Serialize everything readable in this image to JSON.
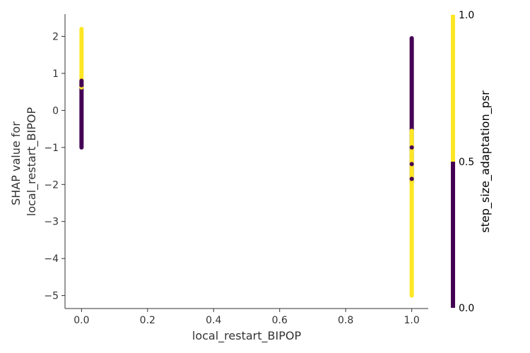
{
  "chart_data": {
    "type": "scatter",
    "title": "",
    "xlabel": "local_restart_BIPOP",
    "ylabel_lines": [
      "SHAP value for",
      "local_restart_BIPOP"
    ],
    "xlim": [
      -0.05,
      1.05
    ],
    "ylim": [
      -5.35,
      2.6
    ],
    "x_ticks": [
      0.0,
      0.2,
      0.4,
      0.6,
      0.8,
      1.0
    ],
    "x_tick_labels": [
      "0.0",
      "0.2",
      "0.4",
      "0.6",
      "0.8",
      "1.0"
    ],
    "y_ticks": [
      2,
      1,
      0,
      -1,
      -2,
      -3,
      -4,
      -5
    ],
    "y_tick_labels": [
      "2",
      "1",
      "0",
      "−1",
      "−2",
      "−3",
      "−4",
      "−5"
    ],
    "grid": false,
    "point_clusters": [
      {
        "x": 0.0,
        "color_value": 1.0,
        "y_min": 0.6,
        "y_max": 2.2
      },
      {
        "x": 0.0,
        "color_value": 0.0,
        "y_min": -1.0,
        "y_max": 0.8
      },
      {
        "x": 1.0,
        "color_value": 0.0,
        "y_min": -1.95,
        "y_max": 1.95
      },
      {
        "x": 1.0,
        "color_value": 1.0,
        "y_min": -5.0,
        "y_max": -0.55
      }
    ],
    "colorbar": {
      "label": "step_size_adaptation_psr",
      "ticks": [
        "0.0",
        "0.5",
        "1.0"
      ],
      "low_color": "#440154",
      "high_color": "#fde725"
    },
    "colors": {
      "low": "#440154",
      "high": "#fde725",
      "axis": "#333333"
    }
  }
}
